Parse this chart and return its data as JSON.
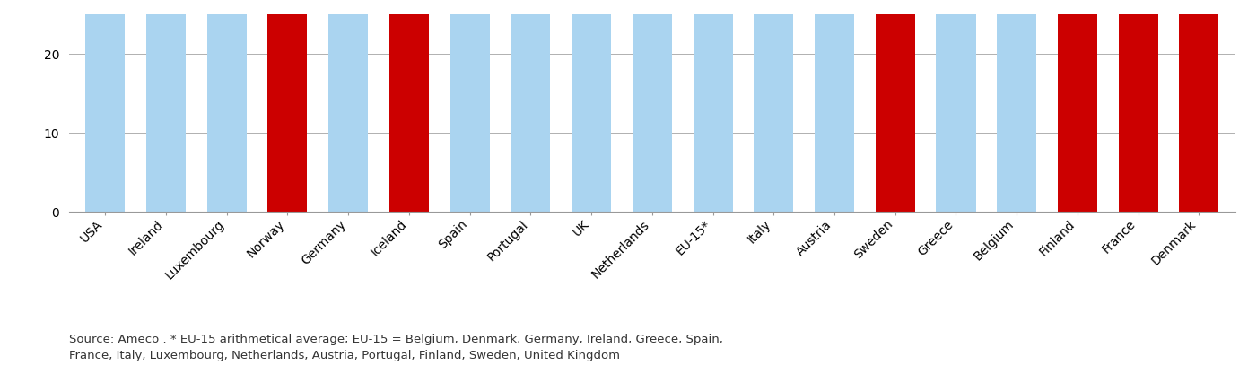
{
  "categories": [
    "USA",
    "Ireland",
    "Luxembourg",
    "Norway",
    "Germany",
    "Iceland",
    "Spain",
    "Portugal",
    "UK",
    "Netherlands",
    "EU-15*",
    "Italy",
    "Austria",
    "Sweden",
    "Greece",
    "Belgium",
    "Finland",
    "France",
    "Denmark"
  ],
  "values": [
    25,
    25,
    25,
    25,
    25,
    25,
    25,
    25,
    25,
    25,
    25,
    25,
    25,
    25,
    25,
    25,
    25,
    25,
    25
  ],
  "bar_colors": [
    "#aad4f0",
    "#aad4f0",
    "#aad4f0",
    "#cc0000",
    "#aad4f0",
    "#cc0000",
    "#aad4f0",
    "#aad4f0",
    "#aad4f0",
    "#aad4f0",
    "#aad4f0",
    "#aad4f0",
    "#aad4f0",
    "#cc0000",
    "#aad4f0",
    "#aad4f0",
    "#cc0000",
    "#cc0000",
    "#cc0000"
  ],
  "ylim": [
    0,
    25
  ],
  "yticks": [
    0,
    10,
    20
  ],
  "grid_color": "#b0b0b0",
  "background_color": "#ffffff",
  "source_text": "Source: Ameco . * EU-15 arithmetical average; EU-15 = Belgium, Denmark, Germany, Ireland, Greece, Spain,\nFrance, Italy, Luxembourg, Netherlands, Austria, Portugal, Finland, Sweden, United Kingdom",
  "source_fontsize": 9.5,
  "tick_fontsize": 10,
  "bar_width": 0.65
}
